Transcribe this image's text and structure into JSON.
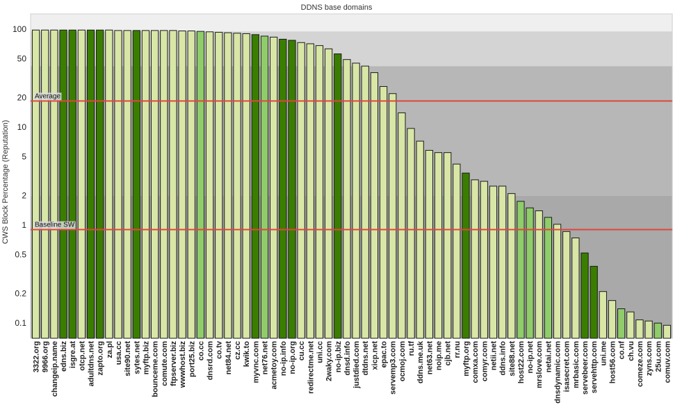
{
  "chart_data": {
    "type": "bar",
    "title": "DDNS base domains",
    "xlabel": "",
    "ylabel": "CWS Block Percentage (Reputation)",
    "yscale": "log",
    "ylim": [
      0.07,
      100
    ],
    "yticks": [
      100,
      50,
      20,
      10,
      5,
      2,
      1,
      0.5,
      0.2,
      0.1
    ],
    "ytick_labels": [
      "100",
      "50",
      "20",
      "10",
      "5",
      "2",
      "1",
      "0.5",
      "0.2",
      "0.1"
    ],
    "background_bands": [
      {
        "from": 0.07,
        "to": 2,
        "color": "#a9a9a9"
      },
      {
        "from": 2,
        "to": 42,
        "color": "#b7b7b7"
      },
      {
        "from": 42,
        "to": 95,
        "color": "#d4d4d4"
      },
      {
        "from": 95,
        "to": 100,
        "color": "#efefef"
      }
    ],
    "reference_lines": [
      {
        "label": "Average",
        "value": 18.5,
        "color": "#e0463c"
      },
      {
        "label": "Baseline SW",
        "value": 0.9,
        "color": "#e0463c"
      }
    ],
    "palette": {
      "light": "#d8e6a6",
      "medium": "#8fcc6a",
      "dark": "#3a7e00"
    },
    "categories": [
      "3322.org",
      "9966.org",
      "changeip.name",
      "edns.biz",
      "isgre.at",
      "otcp.net",
      "adultdns.net",
      "zapto.org",
      "za.pl",
      "usa.cc",
      "site90.net",
      "sytes.net",
      "myftp.biz",
      "bounceme.com",
      "comute.com",
      "ftpserver.biz",
      "wwwhost.biz",
      "port25.biz",
      "co.cc",
      "dnsrd.com",
      "co.tv",
      "net84.net",
      "cz.cc",
      "kwik.to",
      "myvnc.com",
      "net76.net",
      "acmetoy.com",
      "no-ip.info",
      "no-ip.org",
      "cu.cc",
      "redirectme.net",
      "uni.cc",
      "2waky.com",
      "no-ip.biz",
      "dnsd.info",
      "justdied.com",
      "dtdns.net",
      "xicp.net",
      "epac.to",
      "servemp3.com",
      "ocmoj.com",
      "ru.tf",
      "ddns.me.uk",
      "net63.net",
      "noip.me",
      "cjb.net",
      "rr.nu",
      "myftp.org",
      "comxa.com",
      "comyr.com",
      "netii.net",
      "ddns.info",
      "site88.net",
      "host22.com",
      "no-ip.net",
      "mrslove.com",
      "netai.net",
      "dnsdynamic.com",
      "isasecret.com",
      "mrbasic.com",
      "servebeer.com",
      "servehttp.com",
      "uni.me",
      "host56.com",
      "co.nf",
      "ch.vu",
      "comeze.com",
      "zyns.com",
      "25u.com",
      "comuv.com"
    ],
    "values": [
      98,
      98,
      98,
      98,
      98,
      98,
      98,
      98,
      98,
      97,
      97,
      97,
      97,
      97,
      97,
      97,
      96,
      96,
      95,
      94,
      93,
      92,
      91,
      90,
      88,
      85,
      83,
      79,
      77,
      73,
      71,
      68,
      63,
      56,
      49,
      45,
      42,
      36,
      26,
      22,
      14,
      9.7,
      7.2,
      5.8,
      5.5,
      5.5,
      4.2,
      3.4,
      2.9,
      2.8,
      2.5,
      2.5,
      2.1,
      1.75,
      1.5,
      1.4,
      1.2,
      1.02,
      0.86,
      0.74,
      0.52,
      0.38,
      0.21,
      0.17,
      0.14,
      0.13,
      0.108,
      0.105,
      0.1,
      0.095
    ],
    "colors": [
      "light",
      "light",
      "light",
      "dark",
      "dark",
      "light",
      "dark",
      "dark",
      "light",
      "light",
      "light",
      "dark",
      "light",
      "light",
      "light",
      "light",
      "light",
      "light",
      "medium",
      "light",
      "light",
      "light",
      "light",
      "light",
      "dark",
      "medium",
      "light",
      "dark",
      "dark",
      "light",
      "light",
      "light",
      "light",
      "dark",
      "light",
      "light",
      "light",
      "light",
      "light",
      "light",
      "light",
      "light",
      "light",
      "light",
      "light",
      "light",
      "light",
      "dark",
      "light",
      "light",
      "light",
      "light",
      "light",
      "medium",
      "medium",
      "light",
      "medium",
      "light",
      "light",
      "light",
      "dark",
      "dark",
      "light",
      "light",
      "medium",
      "light",
      "light",
      "light",
      "medium",
      "light"
    ]
  }
}
